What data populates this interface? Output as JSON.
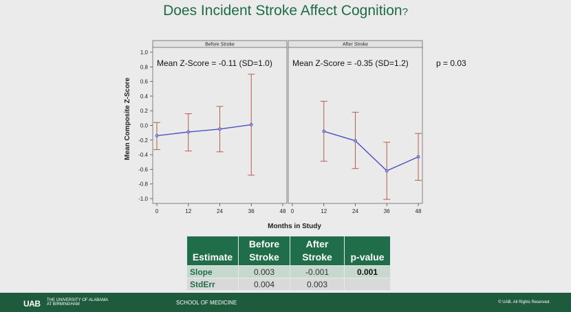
{
  "title": {
    "main": "Does Incident Stroke Affect Cognition",
    "mark": "?"
  },
  "chart_data": {
    "type": "line",
    "ylabel": "Mean Composite Z-Score",
    "xlabel": "Months in Study",
    "ylim": [
      -1.0,
      1.0
    ],
    "yticks": [
      "1.0",
      "0.8",
      "0.6",
      "0.4",
      "0.2",
      "0.0",
      "-0.2",
      "-0.4",
      "-0.6",
      "-0.8",
      "-1.0"
    ],
    "ytick_values": [
      1.0,
      0.8,
      0.6,
      0.4,
      0.2,
      0.0,
      -0.2,
      -0.4,
      -0.6,
      -0.8,
      -1.0
    ],
    "panels": [
      {
        "label": "Before Stroke",
        "annotation": "Mean Z-Score =  -0.11 (SD=1.0)",
        "xlim": [
          0,
          48
        ],
        "xticks": [
          "0",
          "12",
          "24",
          "36",
          "48"
        ],
        "xtick_values": [
          0,
          12,
          24,
          36,
          48
        ],
        "x": [
          0,
          12,
          24,
          36
        ],
        "y": [
          -0.14,
          -0.09,
          -0.05,
          0.01
        ],
        "lower": [
          -0.33,
          -0.35,
          -0.36,
          -0.68
        ],
        "upper": [
          0.04,
          0.16,
          0.26,
          0.7
        ]
      },
      {
        "label": "After Stroke",
        "annotation": "Mean Z-Score =  -0.35 (SD=1.2)",
        "xlim": [
          0,
          48
        ],
        "xticks": [
          "0",
          "12",
          "24",
          "36",
          "48"
        ],
        "xtick_values": [
          0,
          12,
          24,
          36,
          48
        ],
        "x": [
          12,
          24,
          36,
          48
        ],
        "y": [
          -0.08,
          -0.21,
          -0.62,
          -0.43
        ],
        "lower": [
          -0.49,
          -0.59,
          -1.01,
          -0.75
        ],
        "upper": [
          0.33,
          0.18,
          -0.23,
          -0.11
        ]
      }
    ],
    "p_annotation": "p = 0.03",
    "colors": {
      "line": "#4a4fbf",
      "errorbar": "#b55d4c",
      "panel_bg": "#eaeaea",
      "marker": "#9aa0d8"
    }
  },
  "table": {
    "headers": [
      {
        "line1": "",
        "line2": "Estimate"
      },
      {
        "line1": "Before",
        "line2": "Stroke"
      },
      {
        "line1": "After",
        "line2": "Stroke"
      },
      {
        "line1": "",
        "line2": "p-value"
      }
    ],
    "rows": [
      {
        "label": "Slope",
        "before": "0.003",
        "after": "-0.001",
        "p": "0.001"
      },
      {
        "label": "StdErr",
        "before": "0.004",
        "after": "0.003",
        "p": ""
      }
    ]
  },
  "footer": {
    "logo": "UAB",
    "university": "THE UNIVERSITY OF ALABAMA AT BIRMINGHAM",
    "school": "SCHOOL OF MEDICINE",
    "copyright": "© UAB. All Rights Reserved."
  }
}
